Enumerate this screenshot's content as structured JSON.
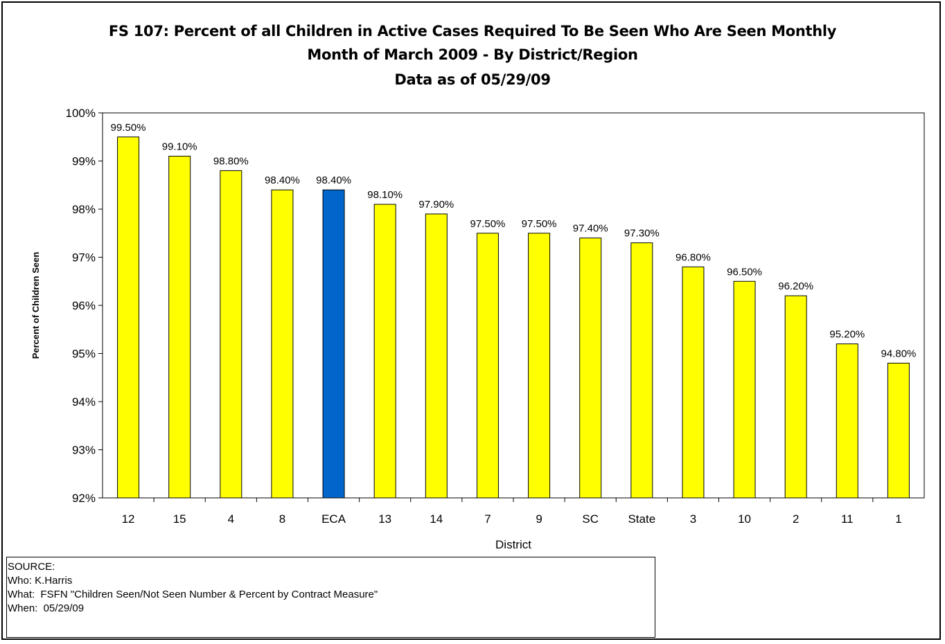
{
  "chart_data": {
    "type": "bar",
    "title": [
      "FS 107: Percent of all Children in Active Cases Required To Be Seen Who Are Seen Monthly",
      "Month of March  2009  - By District/Region",
      "Data as of 05/29/09"
    ],
    "xlabel": "District",
    "ylabel": "Percent of Children Seen",
    "categories": [
      "12",
      "15",
      "4",
      "8",
      "ECA",
      "13",
      "14",
      "7",
      "9",
      "SC",
      "State",
      "3",
      "10",
      "2",
      "11",
      "1"
    ],
    "values": [
      99.5,
      99.1,
      98.8,
      98.4,
      98.4,
      98.1,
      97.9,
      97.5,
      97.5,
      97.4,
      97.3,
      96.8,
      96.5,
      96.2,
      95.2,
      94.8
    ],
    "data_labels": [
      "99.50%",
      "99.10%",
      "98.80%",
      "98.40%",
      "98.40%",
      "98.10%",
      "97.90%",
      "97.50%",
      "97.50%",
      "97.40%",
      "97.30%",
      "96.80%",
      "96.50%",
      "96.20%",
      "95.20%",
      "94.80%"
    ],
    "ylim": [
      92,
      100
    ],
    "yticks": [
      "92%",
      "93%",
      "94%",
      "95%",
      "96%",
      "97%",
      "98%",
      "99%",
      "100%"
    ],
    "grid": false,
    "legend": "none",
    "colors": {
      "default": "#FFFF00",
      "highlight": "#0066CC",
      "highlight_category": "ECA",
      "outline": "#000000"
    }
  },
  "source": {
    "line1": "SOURCE:",
    "line2": "Who: K.Harris",
    "line3": "What:  FSFN \"Children Seen/Not Seen Number & Percent by Contract Measure\"",
    "line4": "When:  05/29/09"
  }
}
